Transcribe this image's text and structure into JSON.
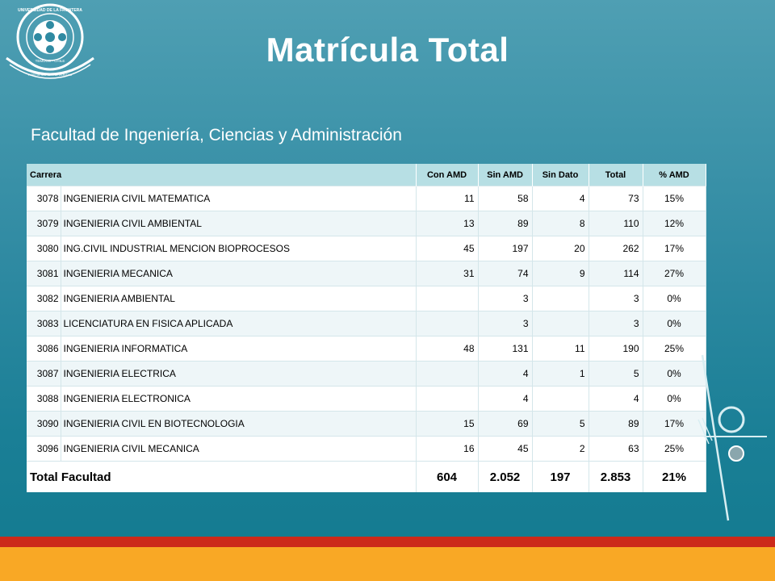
{
  "slide": {
    "title": "Matrícula Total",
    "subtitle": "Facultad de Ingeniería, Ciencias y Administración",
    "logo_text_top": "UNIVERSIDAD DE LA FRONTERA",
    "logo_text_city": "TEMUCO · CHILE",
    "logo_text_bottom": "FORTIS SAPIENTIA VERITAS"
  },
  "table": {
    "headers": [
      "Carrera",
      "Con AMD",
      "Sin AMD",
      "Sin Dato",
      "Total",
      "% AMD"
    ],
    "rows": [
      {
        "code": "3078",
        "name": "INGENIERIA CIVIL MATEMATICA",
        "con": "11",
        "sin": "58",
        "sindato": "4",
        "total": "73",
        "pct": "15%"
      },
      {
        "code": "3079",
        "name": "INGENIERIA CIVIL AMBIENTAL",
        "con": "13",
        "sin": "89",
        "sindato": "8",
        "total": "110",
        "pct": "12%"
      },
      {
        "code": "3080",
        "name": "ING.CIVIL INDUSTRIAL MENCION BIOPROCESOS",
        "con": "45",
        "sin": "197",
        "sindato": "20",
        "total": "262",
        "pct": "17%"
      },
      {
        "code": "3081",
        "name": "INGENIERIA MECANICA",
        "con": "31",
        "sin": "74",
        "sindato": "9",
        "total": "114",
        "pct": "27%"
      },
      {
        "code": "3082",
        "name": "INGENIERIA AMBIENTAL",
        "con": "",
        "sin": "3",
        "sindato": "",
        "total": "3",
        "pct": "0%"
      },
      {
        "code": "3083",
        "name": "LICENCIATURA EN FISICA APLICADA",
        "con": "",
        "sin": "3",
        "sindato": "",
        "total": "3",
        "pct": "0%"
      },
      {
        "code": "3086",
        "name": "INGENIERIA INFORMATICA",
        "con": "48",
        "sin": "131",
        "sindato": "11",
        "total": "190",
        "pct": "25%"
      },
      {
        "code": "3087",
        "name": "INGENIERIA ELECTRICA",
        "con": "",
        "sin": "4",
        "sindato": "1",
        "total": "5",
        "pct": "0%"
      },
      {
        "code": "3088",
        "name": "INGENIERIA ELECTRONICA",
        "con": "",
        "sin": "4",
        "sindato": "",
        "total": "4",
        "pct": "0%"
      },
      {
        "code": "3090",
        "name": "INGENIERIA CIVIL EN BIOTECNOLOGIA",
        "con": "15",
        "sin": "69",
        "sindato": "5",
        "total": "89",
        "pct": "17%"
      },
      {
        "code": "3096",
        "name": "INGENIERIA CIVIL MECANICA",
        "con": "16",
        "sin": "45",
        "sindato": "2",
        "total": "63",
        "pct": "25%"
      }
    ],
    "total": {
      "label": "Total Facultad",
      "con": "604",
      "sin": "2.052",
      "sindato": "197",
      "total": "2.853",
      "pct": "21%"
    }
  },
  "colors": {
    "background": "#2f8aa2",
    "header_fill": "#b7dfe4",
    "bottom_red": "#cc2a1a",
    "bottom_orange": "#f9a825"
  }
}
